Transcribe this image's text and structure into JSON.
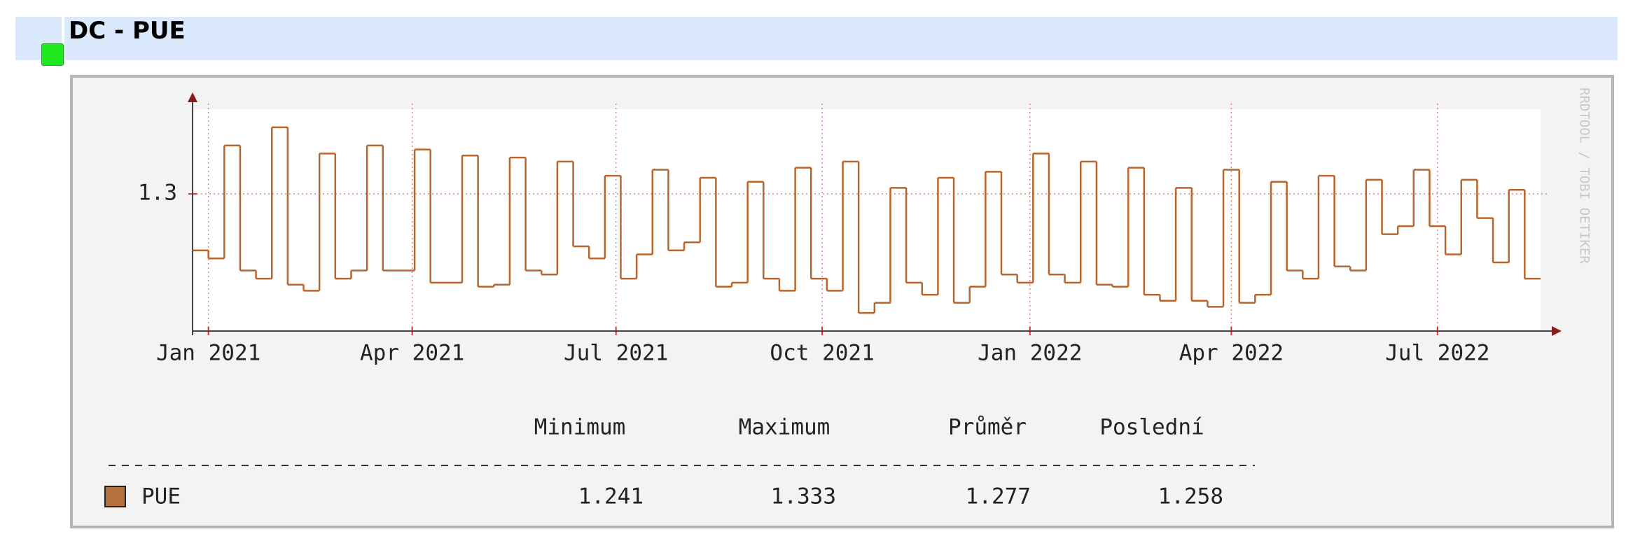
{
  "header": {
    "title": "DC - PUE"
  },
  "chart_data": {
    "type": "line",
    "step": true,
    "series": [
      {
        "name": "PUE",
        "color": "#b8652c",
        "values": [
          1.272,
          1.268,
          1.324,
          1.262,
          1.258,
          1.333,
          1.255,
          1.252,
          1.32,
          1.258,
          1.262,
          1.324,
          1.262,
          1.262,
          1.322,
          1.256,
          1.256,
          1.319,
          1.254,
          1.255,
          1.318,
          1.262,
          1.26,
          1.316,
          1.274,
          1.268,
          1.309,
          1.258,
          1.27,
          1.312,
          1.272,
          1.276,
          1.308,
          1.254,
          1.256,
          1.306,
          1.258,
          1.252,
          1.313,
          1.258,
          1.252,
          1.316,
          1.241,
          1.246,
          1.303,
          1.256,
          1.25,
          1.308,
          1.246,
          1.254,
          1.311,
          1.26,
          1.256,
          1.32,
          1.26,
          1.256,
          1.316,
          1.255,
          1.254,
          1.313,
          1.25,
          1.247,
          1.303,
          1.247,
          1.244,
          1.312,
          1.246,
          1.25,
          1.306,
          1.262,
          1.258,
          1.309,
          1.264,
          1.262,
          1.307,
          1.28,
          1.284,
          1.312,
          1.284,
          1.27,
          1.307,
          1.288,
          1.266,
          1.302,
          1.258
        ]
      }
    ],
    "xlim": [
      0,
      85
    ],
    "xticks": [
      {
        "value": 1.0,
        "label": "Jan 2021"
      },
      {
        "value": 13.85,
        "label": "Apr 2021"
      },
      {
        "value": 26.7,
        "label": "Jul 2021"
      },
      {
        "value": 39.7,
        "label": "Oct 2021"
      },
      {
        "value": 52.8,
        "label": "Jan 2022"
      },
      {
        "value": 65.5,
        "label": "Apr 2022"
      },
      {
        "value": 78.5,
        "label": "Jul 2022"
      }
    ],
    "ylim": [
      1.232,
      1.342
    ],
    "yticks": [
      1.3
    ],
    "grid": true,
    "watermark": "RRDTOOL / TOBI OETIKER"
  },
  "legend_table": {
    "columns": [
      "Minimum",
      "Maximum",
      "Průměr",
      "Poslední"
    ],
    "values": [
      1.241,
      1.333,
      1.277,
      1.258
    ]
  }
}
